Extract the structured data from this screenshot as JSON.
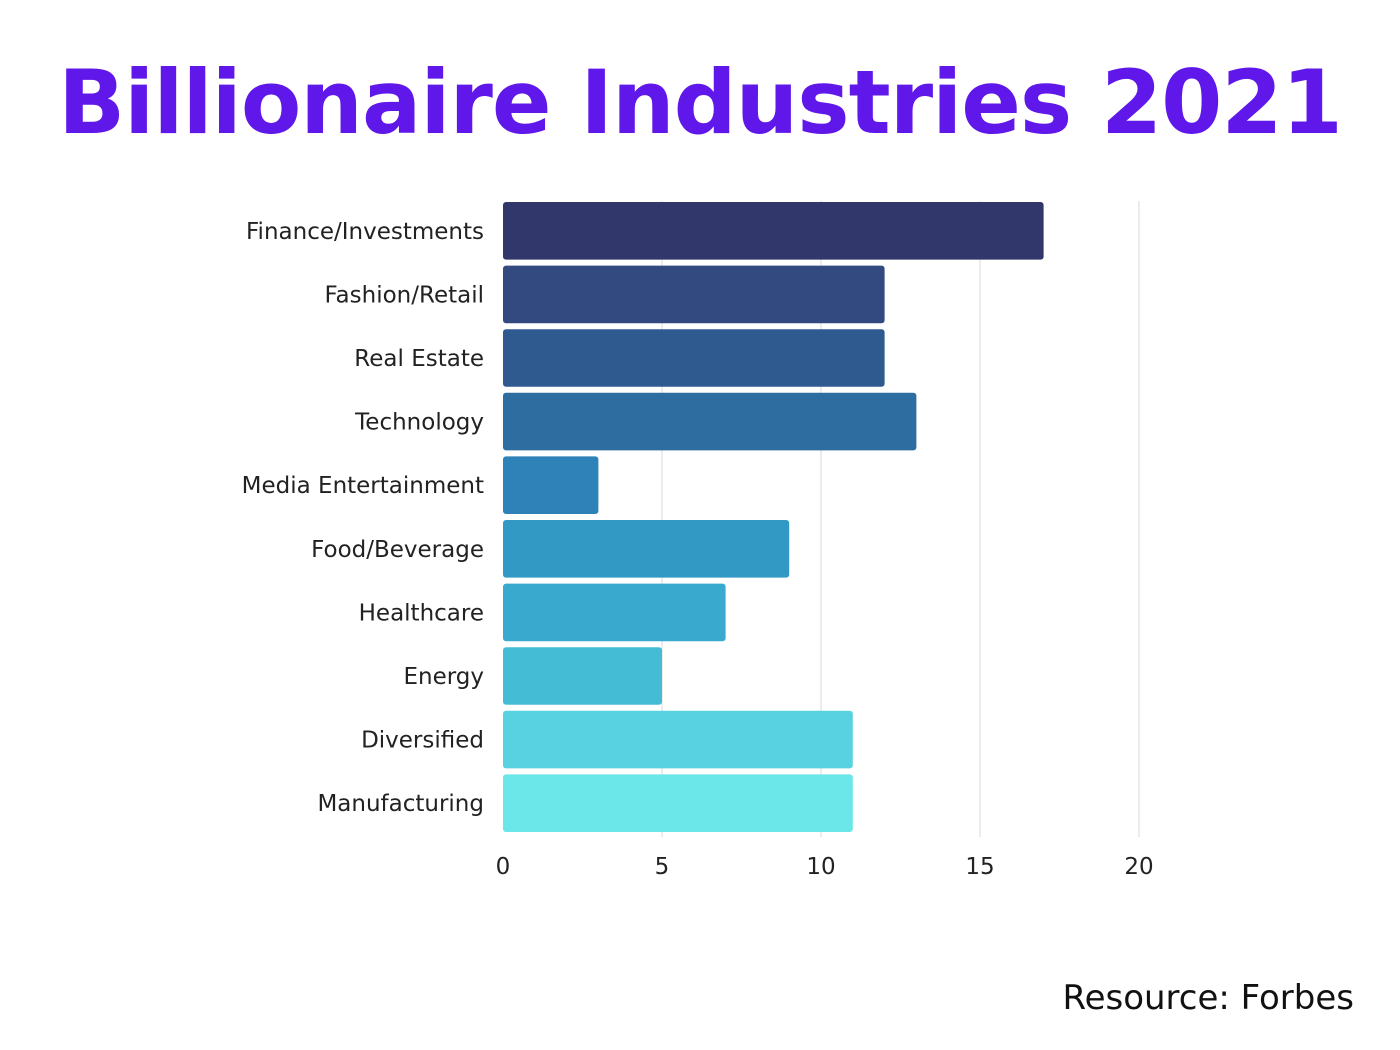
{
  "chart_data": {
    "type": "bar",
    "orientation": "horizontal",
    "title": "Billionaire Industries 2021",
    "categories": [
      "Finance/Investments",
      "Fashion/Retail",
      "Real Estate",
      "Technology",
      "Media Entertainment",
      "Food/Beverage",
      "Healthcare",
      "Energy",
      "Diversified",
      "Manufacturing"
    ],
    "values": [
      17,
      12,
      12,
      13,
      3,
      9,
      7,
      5,
      11,
      11
    ],
    "bar_colors": [
      "#31366b",
      "#324a80",
      "#2f5a8f",
      "#2d6da0",
      "#2e82b8",
      "#3199c4",
      "#3aa9ce",
      "#45bcd6",
      "#58d1e0",
      "#6be6e9"
    ],
    "xlim": [
      0,
      20
    ],
    "x_ticks": [
      "0",
      "5",
      "10",
      "15",
      "20"
    ],
    "grid": true,
    "legend": "none",
    "xlabel": "",
    "ylabel": ""
  },
  "source_note": "Resource: Forbes",
  "colors": {
    "title": "#5f17ea",
    "gridline": "#d9d9d9"
  }
}
